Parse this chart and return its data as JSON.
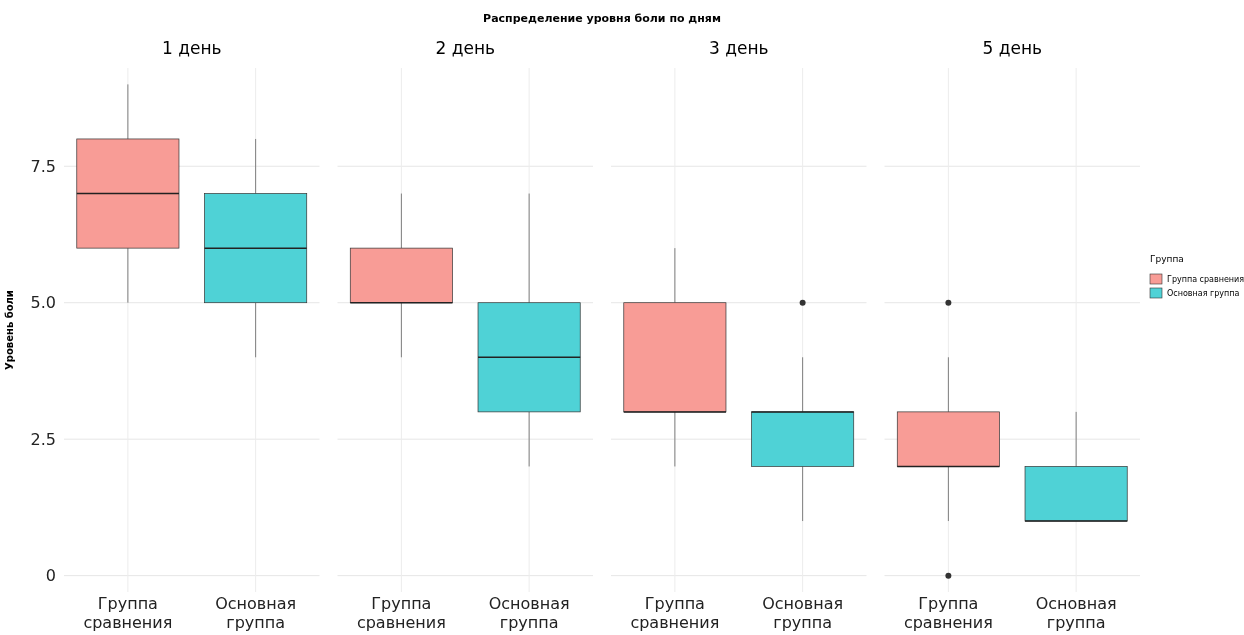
{
  "chart_data": [
    {
      "type": "box",
      "subtitle": "1 день",
      "annotations": [
        "Распределение уровня боли по дням"
      ],
      "ylabel": "Уровень боли",
      "categories": [
        "Группа сравнения",
        "Основная группа"
      ],
      "ylim": [
        -0.3,
        9.3
      ],
      "yticks": [
        0,
        2.5,
        {
          "value": 5,
          "label": "5.0"
        },
        {
          "value": 7.5,
          "label": "7.5"
        }
      ],
      "grid": true,
      "series": [
        {
          "color": "#f89c96",
          "boxes": [
            {
              "low": 5,
              "q1": 6,
              "median": 7,
              "q3": 8,
              "high": 9
            },
            null
          ]
        },
        {
          "color": "#4fd2d6",
          "boxes": [
            null,
            {
              "low": 4,
              "q1": 5,
              "median": 6,
              "q3": 7,
              "high": 8
            }
          ]
        }
      ]
    },
    {
      "type": "box",
      "subtitle": "2 день",
      "categories": [
        "Группа сравнения",
        "Основная группа"
      ],
      "ylim": [
        -0.3,
        9.3
      ],
      "yticks": [
        0,
        2.5,
        5,
        7.5
      ],
      "grid": true,
      "tick_labels": "x",
      "series": [
        {
          "color": "#f89c96",
          "boxes": [
            {
              "low": 4,
              "q1": 5,
              "median": 5,
              "q3": 6,
              "high": 7
            },
            null
          ]
        },
        {
          "color": "#4fd2d6",
          "boxes": [
            null,
            {
              "low": 2,
              "q1": 3,
              "median": 4,
              "q3": 5,
              "high": 7
            }
          ]
        }
      ]
    },
    {
      "type": "box",
      "subtitle": "3 день",
      "categories": [
        "Группа сравнения",
        "Основная группа"
      ],
      "ylim": [
        -0.3,
        9.3
      ],
      "yticks": [
        0,
        2.5,
        5,
        7.5
      ],
      "grid": true,
      "tick_labels": "x",
      "series": [
        {
          "color": "#f89c96",
          "boxes": [
            {
              "low": 2,
              "q1": 3,
              "median": 3,
              "q3": 5,
              "high": 6
            },
            null
          ]
        },
        {
          "color": "#4fd2d6",
          "boxes": [
            null,
            {
              "low": 1,
              "q1": 2,
              "median": 3,
              "q3": 3,
              "high": 4,
              "outliers": [
                5
              ]
            }
          ]
        }
      ]
    },
    {
      "type": "box",
      "subtitle": "5 день",
      "categories": [
        "Группа сравнения",
        "Основная группа"
      ],
      "ylim": [
        -0.3,
        9.3
      ],
      "yticks": [
        0,
        2.5,
        5,
        7.5
      ],
      "grid": true,
      "tick_labels": "x",
      "legend": "right",
      "legend_title": "Группа",
      "series": [
        {
          "name": "Группа сравнения",
          "color": "#f89c96",
          "boxes": [
            {
              "low": 1,
              "q1": 2,
              "median": 2,
              "q3": 3,
              "high": 4,
              "outliers": [
                5,
                0
              ]
            },
            null
          ]
        },
        {
          "name": "Основная группа",
          "color": "#4fd2d6",
          "boxes": [
            null,
            {
              "low": 1,
              "q1": 1,
              "median": 1,
              "q3": 2,
              "high": 3
            }
          ]
        }
      ]
    }
  ]
}
